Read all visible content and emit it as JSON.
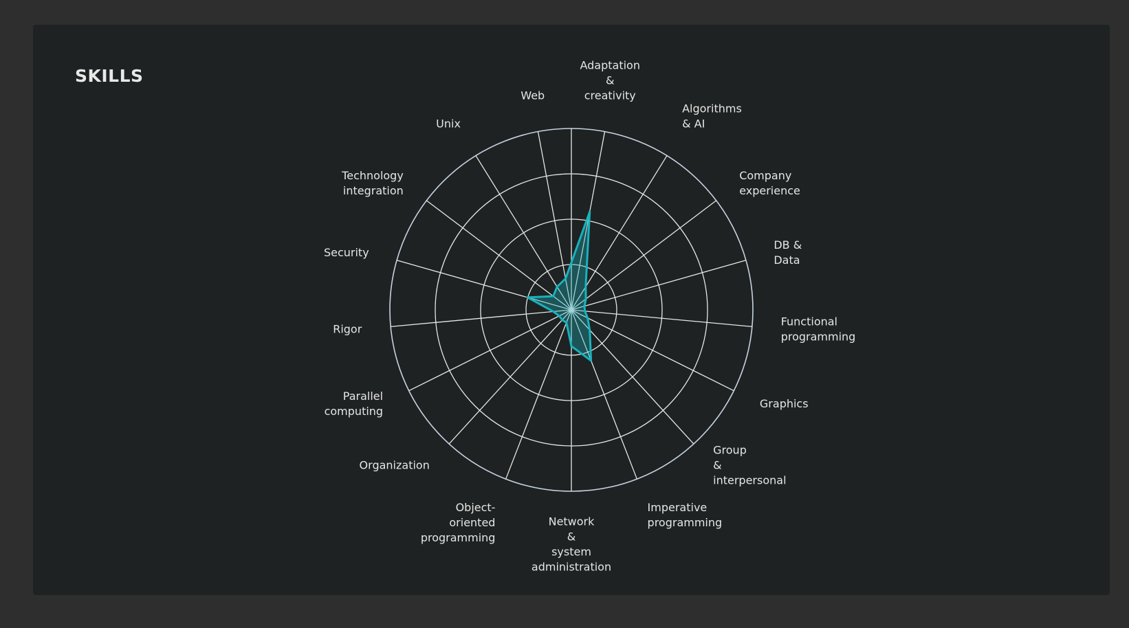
{
  "section": {
    "title": "SKILLS"
  },
  "colors": {
    "page_background": "#2e2e2e",
    "card_background": "#1f2222",
    "grid": "#e8e8e8",
    "outer_ring": "#c6d3e3",
    "series": "#17b3bd",
    "text": "#e6e6e6"
  },
  "chart_data": {
    "type": "radar",
    "title": "SKILLS",
    "categories": [
      [
        "Adaptation",
        "&",
        "creativity"
      ],
      [
        "Algorithms",
        "& AI"
      ],
      [
        "Company",
        "experience"
      ],
      [
        "DB &",
        "Data"
      ],
      [
        "Functional",
        "programming"
      ],
      [
        "Graphics"
      ],
      [
        "Group",
        "&",
        "interpersonal"
      ],
      [
        "Imperative",
        "programming"
      ],
      [
        "Network",
        "&",
        "system",
        "administration"
      ],
      [
        "Object-",
        "oriented",
        "programming"
      ],
      [
        "Organization"
      ],
      [
        "Parallel",
        "computing"
      ],
      [
        "Rigor"
      ],
      [
        "Security"
      ],
      [
        "Technology",
        "integration"
      ],
      [
        "Unix"
      ],
      [
        "Web"
      ]
    ],
    "series": [
      {
        "values": [
          2.2,
          0.6,
          0.4,
          0.3,
          0.3,
          0.4,
          0.6,
          1.2,
          0.8,
          0.3,
          0.3,
          0.3,
          0.4,
          1.0,
          0.5,
          0.6,
          0.7
        ]
      }
    ],
    "rlim": [
      0,
      4
    ],
    "rings": 4,
    "grid": true,
    "legend": "none"
  }
}
